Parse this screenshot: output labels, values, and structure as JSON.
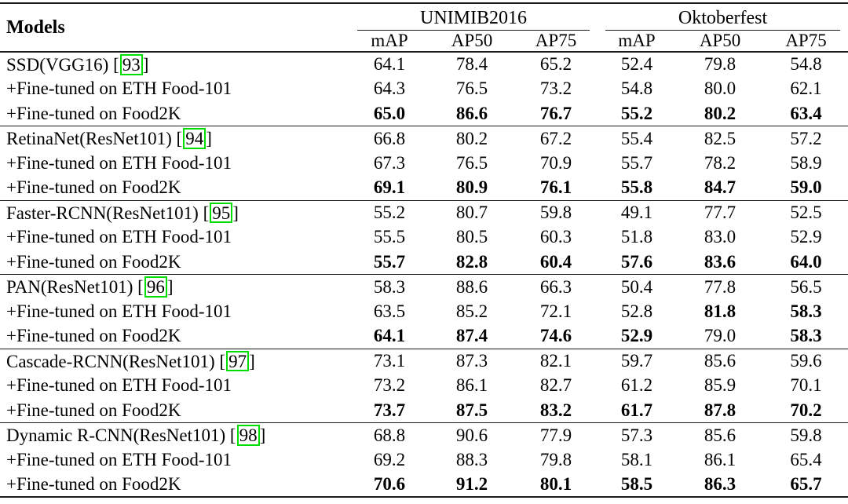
{
  "colors": {
    "citation_box_green": "#00dd00",
    "rule_color": "#1a1a1a",
    "background": "#ffffff"
  },
  "table": {
    "models_header": "Models",
    "groups": [
      {
        "label": "UNIMIB2016"
      },
      {
        "label": "Oktoberfest"
      }
    ],
    "subheaders": [
      "mAP",
      "AP50",
      "AP75",
      "mAP",
      "AP50",
      "AP75"
    ],
    "sections": [
      {
        "rows": [
          {
            "label": "SSD(VGG16) [",
            "cite": "93",
            "close": "]",
            "values": [
              "64.1",
              "78.4",
              "65.2",
              "52.4",
              "79.8",
              "54.8"
            ],
            "bold": [
              0,
              0,
              0,
              0,
              0,
              0
            ]
          },
          {
            "label": "+Fine-tuned on ETH Food-101",
            "values": [
              "64.3",
              "76.5",
              "73.2",
              "54.8",
              "80.0",
              "62.1"
            ],
            "bold": [
              0,
              0,
              0,
              0,
              0,
              0
            ]
          },
          {
            "label": "+Fine-tuned on Food2K",
            "values": [
              "65.0",
              "86.6",
              "76.7",
              "55.2",
              "80.2",
              "63.4"
            ],
            "bold": [
              1,
              1,
              1,
              1,
              1,
              1
            ]
          }
        ]
      },
      {
        "rows": [
          {
            "label": "RetinaNet(ResNet101) [",
            "cite": "94",
            "close": "]",
            "values": [
              "66.8",
              "80.2",
              "67.2",
              "55.4",
              "82.5",
              "57.2"
            ],
            "bold": [
              0,
              0,
              0,
              0,
              0,
              0
            ]
          },
          {
            "label": "+Fine-tuned on ETH Food-101",
            "values": [
              "67.3",
              "76.5",
              "70.9",
              "55.7",
              "78.2",
              "58.9"
            ],
            "bold": [
              0,
              0,
              0,
              0,
              0,
              0
            ]
          },
          {
            "label": "+Fine-tuned on Food2K",
            "values": [
              "69.1",
              "80.9",
              "76.1",
              "55.8",
              "84.7",
              "59.0"
            ],
            "bold": [
              1,
              1,
              1,
              1,
              1,
              1
            ]
          }
        ]
      },
      {
        "rows": [
          {
            "label": "Faster-RCNN(ResNet101) [",
            "cite": "95",
            "close": "]",
            "values": [
              "55.2",
              "80.7",
              "59.8",
              "49.1",
              "77.7",
              "52.5"
            ],
            "bold": [
              0,
              0,
              0,
              0,
              0,
              0
            ]
          },
          {
            "label": "+Fine-tuned on ETH Food-101",
            "values": [
              "55.5",
              "80.5",
              "60.3",
              "51.8",
              "83.0",
              "52.9"
            ],
            "bold": [
              0,
              0,
              0,
              0,
              0,
              0
            ]
          },
          {
            "label": "+Fine-tuned on Food2K",
            "values": [
              "55.7",
              "82.8",
              "60.4",
              "57.6",
              "83.6",
              "64.0"
            ],
            "bold": [
              1,
              1,
              1,
              1,
              1,
              1
            ]
          }
        ]
      },
      {
        "rows": [
          {
            "label": "PAN(ResNet101) [",
            "cite": "96",
            "close": "]",
            "values": [
              "58.3",
              "88.6",
              "66.3",
              "50.4",
              "77.8",
              "56.5"
            ],
            "bold": [
              0,
              0,
              0,
              0,
              0,
              0
            ]
          },
          {
            "label": "+Fine-tuned on ETH Food-101",
            "values": [
              "63.5",
              "85.2",
              "72.1",
              "52.8",
              "81.8",
              "58.3"
            ],
            "bold": [
              0,
              0,
              0,
              0,
              1,
              1
            ]
          },
          {
            "label": "+Fine-tuned on Food2K",
            "values": [
              "64.1",
              "87.4",
              "74.6",
              "52.9",
              "79.0",
              "58.3"
            ],
            "bold": [
              1,
              1,
              1,
              1,
              0,
              1
            ]
          }
        ]
      },
      {
        "rows": [
          {
            "label": "Cascade-RCNN(ResNet101) [",
            "cite": "97",
            "close": "]",
            "values": [
              "73.1",
              "87.3",
              "82.1",
              "59.7",
              "85.6",
              "59.6"
            ],
            "bold": [
              0,
              0,
              0,
              0,
              0,
              0
            ]
          },
          {
            "label": "+Fine-tuned on ETH Food-101",
            "values": [
              "73.2",
              "86.1",
              "82.7",
              "61.2",
              "85.9",
              "70.1"
            ],
            "bold": [
              0,
              0,
              0,
              0,
              0,
              0
            ]
          },
          {
            "label": "+Fine-tuned on Food2K",
            "values": [
              "73.7",
              "87.5",
              "83.2",
              "61.7",
              "87.8",
              "70.2"
            ],
            "bold": [
              1,
              1,
              1,
              1,
              1,
              1
            ]
          }
        ]
      },
      {
        "rows": [
          {
            "label": "Dynamic R-CNN(ResNet101) [",
            "cite": "98",
            "close": "]",
            "values": [
              "68.8",
              "90.6",
              "77.9",
              "57.3",
              "85.6",
              "59.8"
            ],
            "bold": [
              0,
              0,
              0,
              0,
              0,
              0
            ]
          },
          {
            "label": "+Fine-tuned on ETH Food-101",
            "values": [
              "69.2",
              "88.3",
              "79.8",
              "58.1",
              "86.1",
              "65.4"
            ],
            "bold": [
              0,
              0,
              0,
              0,
              0,
              0
            ]
          },
          {
            "label": "+Fine-tuned on Food2K",
            "values": [
              "70.6",
              "91.2",
              "80.1",
              "58.5",
              "86.3",
              "65.7"
            ],
            "bold": [
              1,
              1,
              1,
              1,
              1,
              1
            ]
          }
        ]
      }
    ]
  }
}
